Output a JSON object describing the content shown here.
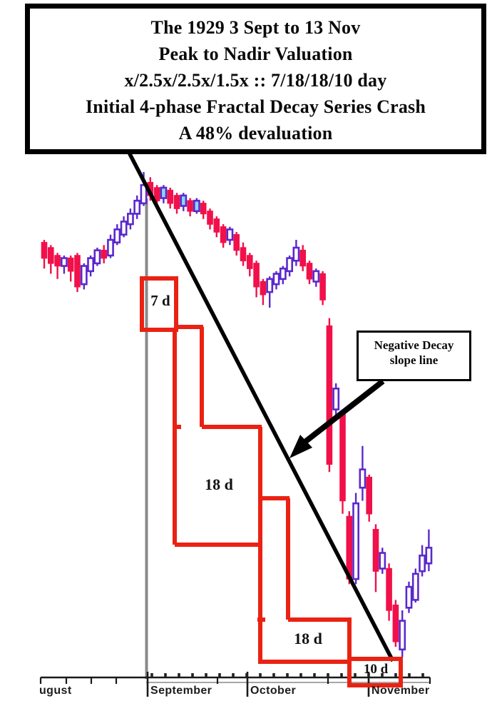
{
  "title": {
    "lines": [
      "The 1929  3 Sept to 13 Nov",
      "Peak to Nadir Valuation",
      "x/2.5x/2.5x/1.5x :: 7/18/18/10 day",
      "Initial 4-phase Fractal Decay Series Crash",
      "A 48% devaluation"
    ]
  },
  "decay_overlay": {
    "phase_labels": [
      "7 d",
      "18 d",
      "18 d",
      "10 d"
    ],
    "phases": [
      {
        "label": "7 d",
        "days": 7,
        "ratio": "x"
      },
      {
        "label": "18 d",
        "days": 18,
        "ratio": "2.5x"
      },
      {
        "label": "18 d",
        "days": 18,
        "ratio": "2.5x"
      },
      {
        "label": "10 d",
        "days": 10,
        "ratio": "1.5x"
      }
    ]
  },
  "slope_callout": {
    "lines": [
      "Negative Decay",
      "slope line"
    ]
  },
  "chart_data": {
    "type": "candlestick",
    "title": "The 1929 3 Sept to 13 Nov Peak to Nadir Valuation - Initial 4-phase Fractal Decay Series Crash - A 48% devaluation",
    "x_axis": {
      "months": [
        "ugust",
        "September",
        "October",
        "November"
      ]
    },
    "ylabel": "",
    "ylim": [
      190,
      387
    ],
    "grid": false,
    "legend": "none",
    "up_color": "#5b28cc",
    "down_color": "#f1104a",
    "cyan_body_color": "#86d8f4",
    "overlay_color": "#ea2213",
    "slope_line_color": "#000000",
    "peak_marker_color": "#8a8a8a",
    "cyan_fill_indices": [
      18,
      21,
      23
    ],
    "candles": [
      [
        357,
        358,
        347,
        351
      ],
      [
        355,
        356,
        345,
        349
      ],
      [
        352,
        353,
        343,
        348
      ],
      [
        348,
        352,
        345,
        351
      ],
      [
        351,
        352,
        342,
        346
      ],
      [
        352,
        353,
        338,
        340
      ],
      [
        341,
        349,
        339,
        348
      ],
      [
        346,
        352,
        344,
        351
      ],
      [
        349,
        355,
        348,
        354
      ],
      [
        354,
        356,
        349,
        351
      ],
      [
        352,
        360,
        351,
        358
      ],
      [
        357,
        364,
        356,
        362
      ],
      [
        360,
        367,
        359,
        365
      ],
      [
        364,
        370,
        362,
        368
      ],
      [
        368,
        375,
        366,
        373
      ],
      [
        372,
        384,
        371,
        379
      ],
      [
        380,
        382,
        373,
        375
      ],
      [
        378,
        379,
        371,
        373
      ],
      [
        374,
        379,
        372,
        378
      ],
      [
        377,
        378,
        370,
        372
      ],
      [
        375,
        376,
        368,
        370
      ],
      [
        371,
        376,
        369,
        375
      ],
      [
        373,
        374,
        367,
        369
      ],
      [
        369,
        374,
        368,
        373
      ],
      [
        372,
        373,
        366,
        368
      ],
      [
        369,
        370,
        362,
        364
      ],
      [
        366,
        367,
        359,
        361
      ],
      [
        363,
        364,
        355,
        357
      ],
      [
        358,
        363,
        356,
        362
      ],
      [
        360,
        361,
        352,
        354
      ],
      [
        355,
        357,
        348,
        350
      ],
      [
        352,
        353,
        344,
        347
      ],
      [
        349,
        350,
        336,
        340
      ],
      [
        342,
        343,
        333,
        337
      ],
      [
        338,
        344,
        332,
        343
      ],
      [
        341,
        346,
        339,
        345
      ],
      [
        343,
        348,
        341,
        347
      ],
      [
        346,
        352,
        344,
        351
      ],
      [
        350,
        358,
        348,
        355
      ],
      [
        354,
        356,
        346,
        348
      ],
      [
        349,
        350,
        341,
        343
      ],
      [
        342,
        347,
        340,
        346
      ],
      [
        345,
        346,
        333,
        335
      ],
      [
        325,
        328,
        269,
        272
      ],
      [
        293,
        303,
        290,
        301
      ],
      [
        291,
        293,
        253,
        258
      ],
      [
        252,
        254,
        226,
        228
      ],
      [
        228,
        261,
        226,
        257
      ],
      [
        263,
        279,
        258,
        270
      ],
      [
        267,
        268,
        250,
        253
      ],
      [
        247,
        249,
        223,
        231
      ],
      [
        232,
        240,
        230,
        238
      ],
      [
        232,
        234,
        212,
        216
      ],
      [
        218,
        220,
        202,
        204
      ],
      [
        201,
        216,
        198,
        212
      ],
      [
        217,
        227,
        215,
        225
      ],
      [
        220,
        232,
        219,
        230
      ],
      [
        231,
        241,
        229,
        237
      ],
      [
        234,
        247,
        231,
        240
      ]
    ]
  }
}
